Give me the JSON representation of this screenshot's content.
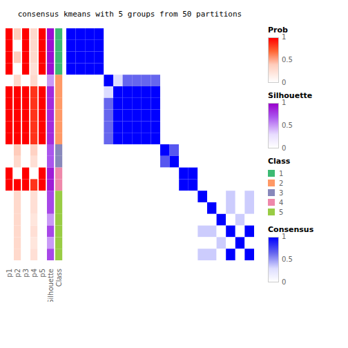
{
  "chart_data": {
    "type": "heatmap",
    "title": "consensus kmeans with 5 groups from 50 partitions",
    "tick_labels": false,
    "colorbar": "Consensus",
    "cells": [
      [
        1.0,
        1.0,
        1.0,
        1.0,
        0.0,
        0.0,
        0.0,
        0.0,
        0.0,
        0.0,
        0.0,
        0.0,
        0.0,
        0.0,
        0.0,
        0.0,
        0.0,
        0.0,
        0.0,
        0.0
      ],
      [
        1.0,
        1.0,
        1.0,
        1.0,
        0.0,
        0.0,
        0.0,
        0.0,
        0.0,
        0.0,
        0.0,
        0.0,
        0.0,
        0.0,
        0.0,
        0.0,
        0.0,
        0.0,
        0.0,
        0.0
      ],
      [
        1.0,
        1.0,
        1.0,
        1.0,
        0.0,
        0.0,
        0.0,
        0.0,
        0.0,
        0.0,
        0.0,
        0.0,
        0.0,
        0.0,
        0.0,
        0.0,
        0.0,
        0.0,
        0.0,
        0.0
      ],
      [
        1.0,
        1.0,
        1.0,
        1.0,
        0.0,
        0.0,
        0.0,
        0.0,
        0.0,
        0.0,
        0.0,
        0.0,
        0.0,
        0.0,
        0.0,
        0.0,
        0.0,
        0.0,
        0.0,
        0.0
      ],
      [
        0.0,
        0.0,
        0.0,
        0.0,
        1.0,
        0.3,
        0.65,
        0.65,
        0.65,
        0.65,
        0.0,
        0.0,
        0.0,
        0.0,
        0.0,
        0.0,
        0.0,
        0.0,
        0.0,
        0.0
      ],
      [
        0.0,
        0.0,
        0.0,
        0.0,
        0.3,
        1.0,
        1.0,
        1.0,
        1.0,
        1.0,
        0.0,
        0.0,
        0.0,
        0.0,
        0.0,
        0.0,
        0.0,
        0.0,
        0.0,
        0.0
      ],
      [
        0.0,
        0.0,
        0.0,
        0.0,
        0.65,
        1.0,
        1.0,
        1.0,
        1.0,
        1.0,
        0.0,
        0.0,
        0.0,
        0.0,
        0.0,
        0.0,
        0.0,
        0.0,
        0.0,
        0.0
      ],
      [
        0.0,
        0.0,
        0.0,
        0.0,
        0.65,
        1.0,
        1.0,
        1.0,
        1.0,
        1.0,
        0.0,
        0.0,
        0.0,
        0.0,
        0.0,
        0.0,
        0.0,
        0.0,
        0.0,
        0.0
      ],
      [
        0.0,
        0.0,
        0.0,
        0.0,
        0.65,
        1.0,
        1.0,
        1.0,
        1.0,
        1.0,
        0.0,
        0.0,
        0.0,
        0.0,
        0.0,
        0.0,
        0.0,
        0.0,
        0.0,
        0.0
      ],
      [
        0.0,
        0.0,
        0.0,
        0.0,
        0.65,
        1.0,
        1.0,
        1.0,
        1.0,
        1.0,
        0.0,
        0.0,
        0.0,
        0.0,
        0.0,
        0.0,
        0.0,
        0.0,
        0.0,
        0.0
      ],
      [
        0.0,
        0.0,
        0.0,
        0.0,
        0.0,
        0.0,
        0.0,
        0.0,
        0.0,
        0.0,
        1.0,
        0.7,
        0.0,
        0.0,
        0.0,
        0.0,
        0.0,
        0.0,
        0.0,
        0.0
      ],
      [
        0.0,
        0.0,
        0.0,
        0.0,
        0.0,
        0.0,
        0.0,
        0.0,
        0.0,
        0.0,
        0.7,
        1.0,
        0.0,
        0.0,
        0.0,
        0.0,
        0.0,
        0.0,
        0.0,
        0.0
      ],
      [
        0.0,
        0.0,
        0.0,
        0.0,
        0.0,
        0.0,
        0.0,
        0.0,
        0.0,
        0.0,
        0.0,
        0.0,
        1.0,
        1.0,
        0.0,
        0.0,
        0.0,
        0.0,
        0.0,
        0.0
      ],
      [
        0.0,
        0.0,
        0.0,
        0.0,
        0.0,
        0.0,
        0.0,
        0.0,
        0.0,
        0.0,
        0.0,
        0.0,
        1.0,
        1.0,
        0.0,
        0.0,
        0.0,
        0.0,
        0.0,
        0.0
      ],
      [
        0.0,
        0.0,
        0.0,
        0.0,
        0.0,
        0.0,
        0.0,
        0.0,
        0.0,
        0.0,
        0.0,
        0.0,
        0.0,
        0.0,
        1.0,
        0.0,
        0.0,
        0.35,
        0.0,
        0.35
      ],
      [
        0.0,
        0.0,
        0.0,
        0.0,
        0.0,
        0.0,
        0.0,
        0.0,
        0.0,
        0.0,
        0.0,
        0.0,
        0.0,
        0.0,
        0.0,
        1.0,
        0.0,
        0.35,
        0.0,
        0.35
      ],
      [
        0.0,
        0.0,
        0.0,
        0.0,
        0.0,
        0.0,
        0.0,
        0.0,
        0.0,
        0.0,
        0.0,
        0.0,
        0.0,
        0.0,
        0.0,
        0.0,
        1.0,
        0.0,
        0.35,
        0.0
      ],
      [
        0.0,
        0.0,
        0.0,
        0.0,
        0.0,
        0.0,
        0.0,
        0.0,
        0.0,
        0.0,
        0.0,
        0.0,
        0.0,
        0.0,
        0.35,
        0.35,
        0.0,
        1.0,
        0.0,
        1.0
      ],
      [
        0.0,
        0.0,
        0.0,
        0.0,
        0.0,
        0.0,
        0.0,
        0.0,
        0.0,
        0.0,
        0.0,
        0.0,
        0.0,
        0.0,
        0.0,
        0.0,
        0.35,
        0.0,
        1.0,
        0.0
      ],
      [
        0.0,
        0.0,
        0.0,
        0.0,
        0.0,
        0.0,
        0.0,
        0.0,
        0.0,
        0.0,
        0.0,
        0.0,
        0.0,
        0.0,
        0.35,
        0.35,
        0.0,
        1.0,
        0.0,
        1.0
      ]
    ],
    "series": [
      {
        "name": "p1",
        "colorbar": "Prob",
        "values": [
          1.0,
          1.0,
          1.0,
          1.0,
          0.0,
          1.0,
          1.0,
          1.0,
          1.0,
          1.0,
          0.0,
          0.0,
          1.0,
          1.0,
          0.0,
          0.0,
          0.0,
          0.0,
          0.0,
          0.0
        ]
      },
      {
        "name": "p2",
        "colorbar": "Prob",
        "values": [
          0.4,
          0.0,
          0.4,
          0.0,
          0.3,
          1.0,
          1.0,
          1.0,
          1.0,
          1.0,
          0.4,
          0.3,
          0.0,
          1.0,
          0.3,
          0.3,
          0.3,
          0.3,
          0.3,
          0.3
        ]
      },
      {
        "name": "p3",
        "colorbar": "Prob",
        "values": [
          1.0,
          1.0,
          1.0,
          1.0,
          0.0,
          1.0,
          1.0,
          1.0,
          1.0,
          1.0,
          0.0,
          0.0,
          1.0,
          1.0,
          0.0,
          0.0,
          0.0,
          0.0,
          0.0,
          0.0
        ]
      },
      {
        "name": "p4",
        "colorbar": "Prob",
        "values": [
          0.3,
          0.3,
          0.3,
          0.25,
          0.3,
          0.85,
          0.85,
          0.85,
          0.85,
          0.85,
          0.35,
          0.25,
          0.0,
          0.85,
          0.25,
          0.25,
          0.2,
          0.25,
          0.2,
          0.25
        ]
      },
      {
        "name": "p5",
        "colorbar": "Prob",
        "values": [
          1.0,
          1.0,
          1.0,
          1.0,
          0.0,
          1.0,
          1.0,
          1.0,
          1.0,
          1.0,
          0.0,
          0.0,
          1.0,
          1.0,
          0.0,
          0.0,
          0.0,
          0.0,
          0.0,
          0.0
        ]
      },
      {
        "name": "Silhouette",
        "colorbar": "Silhouette",
        "values": [
          0.95,
          0.95,
          0.95,
          0.95,
          0.5,
          0.85,
          0.85,
          0.85,
          0.85,
          0.85,
          0.7,
          0.7,
          0.9,
          0.9,
          0.75,
          0.75,
          0.5,
          0.75,
          0.5,
          0.75
        ]
      },
      {
        "name": "Class",
        "values": [
          1,
          1,
          1,
          1,
          2,
          2,
          2,
          2,
          2,
          2,
          3,
          3,
          4,
          4,
          5,
          5,
          5,
          5,
          5,
          5
        ]
      }
    ],
    "class_legend": {
      "title": "Class",
      "items": [
        {
          "name": "1",
          "color": "#3dba74"
        },
        {
          "name": "2",
          "color": "#ff9966"
        },
        {
          "name": "3",
          "color": "#8888bb"
        },
        {
          "name": "4",
          "color": "#ee88aa"
        },
        {
          "name": "5",
          "color": "#99cc44"
        }
      ]
    },
    "colorbars": [
      {
        "title": "Prob",
        "range": [
          0,
          1
        ],
        "ticks": [
          0,
          0.5,
          1
        ],
        "colors": [
          "#FFFFFF",
          "#FFCCBB",
          "#FF6633",
          "#FF0000"
        ]
      },
      {
        "title": "Silhouette",
        "range": [
          0,
          1
        ],
        "ticks": [
          0,
          0.5,
          1
        ],
        "colors": [
          "#FFFFFF",
          "#E8DDFF",
          "#AA55EE",
          "#9900CC"
        ]
      },
      {
        "title": "Consensus",
        "range": [
          0,
          1
        ],
        "ticks": [
          0,
          0.5,
          1
        ],
        "colors": [
          "#FFFFFF",
          "#DDDDFF",
          "#6666EE",
          "#0000FF"
        ]
      }
    ]
  }
}
